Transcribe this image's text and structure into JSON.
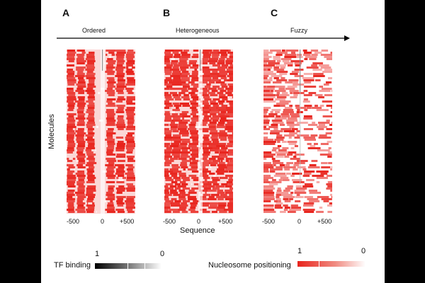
{
  "panels": [
    {
      "letter": "A",
      "label": "Ordered",
      "ticks": [
        "-500",
        "0",
        "+500"
      ],
      "style": "ordered"
    },
    {
      "letter": "B",
      "label": "Heterogeneous",
      "ticks": [
        "-500",
        "0",
        "+500"
      ],
      "style": "heterogeneous"
    },
    {
      "letter": "C",
      "label": "Fuzzy",
      "ticks": [
        "-500",
        "0",
        "+500"
      ],
      "style": "fuzzy"
    }
  ],
  "axes": {
    "y_label": "Molecules",
    "x_label": "Sequence"
  },
  "legend": {
    "tf": {
      "label": "TF binding",
      "high": "1",
      "low": "0"
    },
    "nucleosome": {
      "label": "Nucleosome positioning",
      "high": "1",
      "low": "0"
    }
  },
  "colors": {
    "nucleosome": "#e8231c",
    "tf": "#000000",
    "background": "#ffffff"
  }
}
